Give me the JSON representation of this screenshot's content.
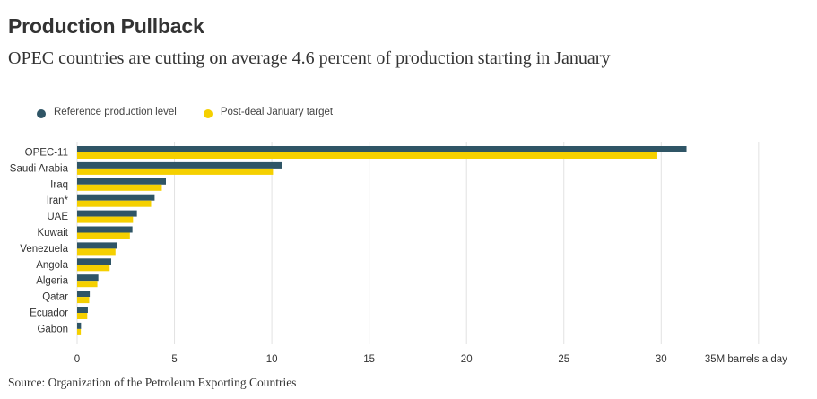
{
  "title": "Production Pullback",
  "subtitle": "OPEC countries are cutting on average 4.6 percent of production starting in January",
  "source": "Source: Organization of the Petroleum Exporting Countries",
  "colors": {
    "reference": "#2f5566",
    "target": "#f5d000",
    "grid": "#e2e2e2"
  },
  "chart_data": {
    "type": "bar",
    "orientation": "horizontal",
    "categories": [
      "OPEC-11",
      "Saudi Arabia",
      "Iraq",
      "Iran*",
      "UAE",
      "Kuwait",
      "Venezuela",
      "Angola",
      "Algeria",
      "Qatar",
      "Ecuador",
      "Gabon"
    ],
    "series": [
      {
        "name": "Reference production level",
        "values": [
          31.3,
          10.54,
          4.56,
          3.98,
          3.07,
          2.84,
          2.07,
          1.75,
          1.09,
          0.65,
          0.55,
          0.2
        ]
      },
      {
        "name": "Post-deal January target",
        "values": [
          29.8,
          10.06,
          4.35,
          3.8,
          2.87,
          2.71,
          1.97,
          1.67,
          1.04,
          0.62,
          0.52,
          0.19
        ]
      }
    ],
    "xticks": [
      "0",
      "5",
      "10",
      "15",
      "20",
      "25",
      "30",
      "35M barrels a day"
    ],
    "xlim": [
      0,
      35
    ],
    "grid": true,
    "legend": "top-left"
  }
}
